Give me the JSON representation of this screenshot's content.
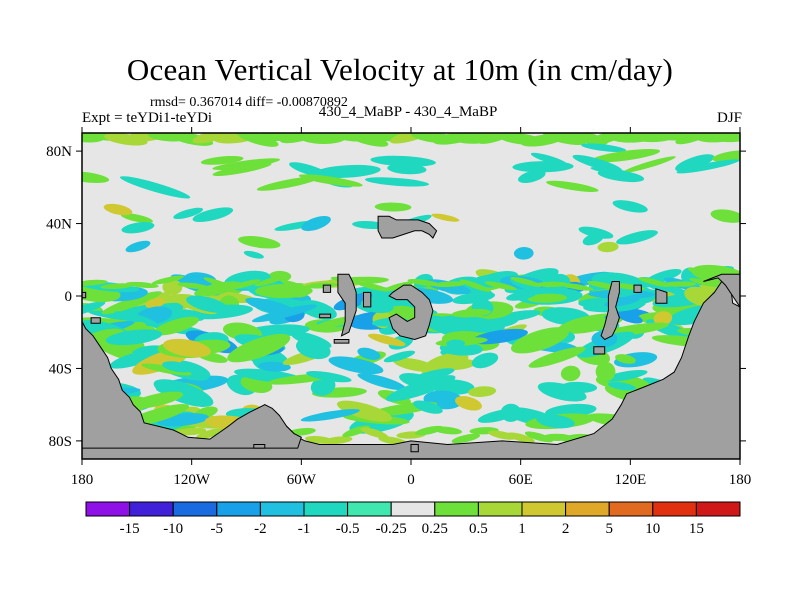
{
  "chart_data": {
    "type": "heatmap",
    "title": "Ocean Vertical Velocity at 10m (in cm/day)",
    "stats_text": "rmsd= 0.367014 diff= -0.00870892",
    "case_text": "430_4_MaBP - 430_4_MaBP",
    "expt_text": "Expt = teYDi1-teYDi",
    "season": "DJF",
    "x_ticks": [
      "180",
      "120W",
      "60W",
      "0",
      "60E",
      "120E",
      "180"
    ],
    "y_ticks": [
      "80N",
      "40N",
      "0",
      "40S",
      "80S"
    ],
    "lon_range": [
      -180,
      180
    ],
    "lat_range": [
      -90,
      90
    ],
    "colorbar": {
      "labels": [
        "-15",
        "-10",
        "-5",
        "-2",
        "-1",
        "-0.5",
        "-0.25",
        "0.25",
        "0.5",
        "1",
        "2",
        "5",
        "10",
        "15"
      ],
      "colors": [
        "#9010e8",
        "#4020d8",
        "#1a6ae0",
        "#18a0e8",
        "#20c0e0",
        "#20d8c0",
        "#40e8b0",
        "#e6e6e6",
        "#6ee03a",
        "#a8d838",
        "#d0c830",
        "#e0a828",
        "#e06a20",
        "#e03010",
        "#d01818"
      ]
    },
    "ocean_background": "#e6e6e6",
    "land_color": "#a0a0a0"
  }
}
